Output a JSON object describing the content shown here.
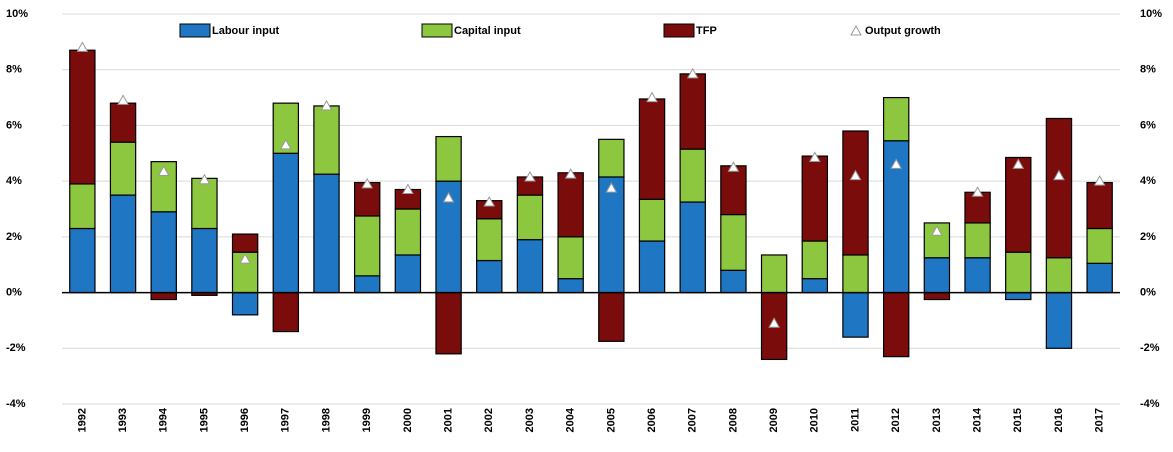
{
  "chart_data": {
    "type": "bar",
    "stacked": true,
    "categories": [
      "1992",
      "1993",
      "1994",
      "1995",
      "1996",
      "1997",
      "1998",
      "1999",
      "2000",
      "2001",
      "2002",
      "2003",
      "2004",
      "2005",
      "2006",
      "2007",
      "2008",
      "2009",
      "2010",
      "2011",
      "2012",
      "2013",
      "2014",
      "2015",
      "2016",
      "2017"
    ],
    "series": [
      {
        "name": "Labour input",
        "color": "#1f77c4",
        "values": [
          2.3,
          3.5,
          2.9,
          2.3,
          -0.8,
          5.0,
          4.25,
          0.6,
          1.35,
          4.0,
          1.15,
          1.9,
          0.5,
          4.15,
          1.85,
          3.25,
          0.8,
          0,
          0.5,
          -1.6,
          5.45,
          1.25,
          1.25,
          -0.25,
          -2.0,
          1.05
        ]
      },
      {
        "name": "Capital input",
        "color": "#8dc63f",
        "values": [
          1.6,
          1.9,
          1.8,
          1.8,
          1.45,
          1.8,
          2.45,
          2.15,
          1.65,
          1.6,
          1.5,
          1.6,
          1.5,
          1.35,
          1.5,
          1.9,
          2.0,
          1.35,
          1.35,
          1.35,
          1.55,
          1.25,
          1.25,
          1.45,
          1.25,
          1.25
        ]
      },
      {
        "name": "TFP",
        "color": "#7b0c0c",
        "values": [
          4.8,
          1.4,
          -0.25,
          -0.1,
          0.65,
          -1.4,
          0,
          1.2,
          0.7,
          -2.2,
          0.65,
          0.65,
          2.3,
          -1.75,
          3.6,
          2.7,
          1.75,
          -2.4,
          3.05,
          4.45,
          -2.3,
          -0.25,
          1.1,
          3.4,
          5.0,
          1.65
        ]
      }
    ],
    "markers": {
      "name": "Output growth",
      "color": "#ffffff",
      "values": [
        8.8,
        6.9,
        4.35,
        4.05,
        1.2,
        5.3,
        6.7,
        3.9,
        3.7,
        3.4,
        3.25,
        4.15,
        4.25,
        3.75,
        7.0,
        7.85,
        4.5,
        -1.1,
        4.85,
        4.2,
        4.6,
        2.2,
        3.6,
        4.6,
        4.2,
        4.0
      ]
    },
    "ylim": [
      -4,
      10
    ],
    "yticks": [
      {
        "value": -4,
        "label": "-4%"
      },
      {
        "value": -2,
        "label": "-2%"
      },
      {
        "value": 0,
        "label": "0%"
      },
      {
        "value": 2,
        "label": "2%"
      },
      {
        "value": 4,
        "label": "4%"
      },
      {
        "value": 6,
        "label": "6%"
      },
      {
        "value": 8,
        "label": "8%"
      },
      {
        "value": 10,
        "label": "10%"
      }
    ],
    "grid": true,
    "y2_mirror": true
  }
}
